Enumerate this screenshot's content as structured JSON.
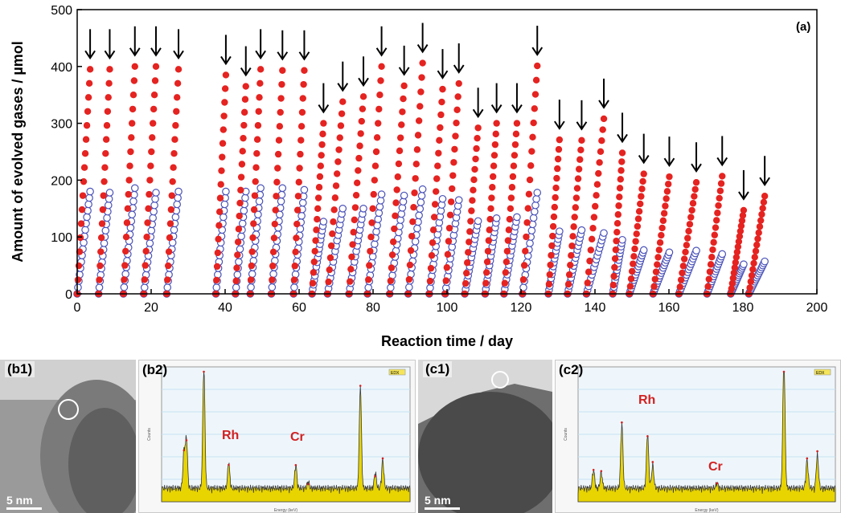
{
  "chart_data": [
    {
      "type": "scatter",
      "panel_label": "(a)",
      "xlabel": "Reaction time / day",
      "ylabel": "Amount of evolved gases / µmol",
      "xlim": [
        0,
        200
      ],
      "ylim": [
        0,
        500
      ],
      "xticks": [
        "0",
        "20",
        "40",
        "60",
        "80",
        "100",
        "120",
        "140",
        "160",
        "180",
        "200"
      ],
      "yticks": [
        "0",
        "100",
        "200",
        "300",
        "400",
        "500"
      ],
      "colors": {
        "H2": "#e52320",
        "O2_fill": "#ffffff",
        "O2_edge": "#4a52b8"
      },
      "markers": {
        "H2": "filled circle (red)",
        "O2": "open circle (blue edge)"
      },
      "arrow_note": "down arrows mark each evacuation/restart of a run",
      "series": [
        {
          "name": "",
          "points": [
            [
              [
                0,
                0
              ],
              [
                3.5,
                395
              ]
            ],
            [
              [
                5.8,
                0
              ],
              [
                8.8,
                395
              ]
            ],
            [
              [
                12.5,
                0
              ],
              [
                15.6,
                400
              ]
            ],
            [
              [
                18,
                0
              ],
              [
                21.3,
                400
              ]
            ],
            [
              [
                24.2,
                0
              ],
              [
                27.4,
                395
              ]
            ],
            [
              [
                37.5,
                0
              ],
              [
                40.2,
                385
              ]
            ],
            [
              [
                42.8,
                0
              ],
              [
                45.6,
                365
              ]
            ],
            [
              [
                46.8,
                0
              ],
              [
                49.6,
                395
              ]
            ],
            [
              [
                52.5,
                0
              ],
              [
                55.5,
                393
              ]
            ],
            [
              [
                58.5,
                0
              ],
              [
                61.4,
                393
              ]
            ],
            [
              [
                63.5,
                0
              ],
              [
                66.6,
                300
              ]
            ],
            [
              [
                67.7,
                0
              ],
              [
                71.8,
                338
              ]
            ],
            [
              [
                73.5,
                0
              ],
              [
                77.4,
                347
              ]
            ],
            [
              [
                78.5,
                0
              ],
              [
                82.3,
                400
              ]
            ],
            [
              [
                84.5,
                0
              ],
              [
                88.4,
                366
              ]
            ],
            [
              [
                89.5,
                0
              ],
              [
                93.4,
                406
              ]
            ],
            [
              [
                95.2,
                0
              ],
              [
                98.8,
                360
              ]
            ],
            [
              [
                99.5,
                0
              ],
              [
                103.2,
                370
              ]
            ],
            [
              [
                104.8,
                0
              ],
              [
                108.4,
                292
              ]
            ],
            [
              [
                110.3,
                0
              ],
              [
                113.4,
                300
              ]
            ],
            [
              [
                115.4,
                0
              ],
              [
                118.9,
                300
              ]
            ],
            [
              [
                120.4,
                0
              ],
              [
                124.4,
                401
              ]
            ],
            [
              [
                127.4,
                0
              ],
              [
                130.4,
                271
              ]
            ],
            [
              [
                132.6,
                0
              ],
              [
                136.4,
                270
              ]
            ],
            [
              [
                137.7,
                0
              ],
              [
                142.4,
                308
              ]
            ],
            [
              [
                144.8,
                0
              ],
              [
                147.4,
                248
              ]
            ],
            [
              [
                149.3,
                0
              ],
              [
                153.2,
                211
              ]
            ],
            [
              [
                155.7,
                0
              ],
              [
                160.1,
                206
              ]
            ],
            [
              [
                162.7,
                0
              ],
              [
                167.4,
                196
              ]
            ],
            [
              [
                170.3,
                0
              ],
              [
                174.4,
                207
              ]
            ],
            [
              [
                176.7,
                0
              ],
              [
                180.2,
                147
              ]
            ],
            [
              [
                181.6,
                0
              ],
              [
                185.9,
                172
              ]
            ]
          ]
        },
        {
          "name": "",
          "points": [
            [
              [
                0,
                0
              ],
              [
                3.5,
                180
              ]
            ],
            [
              [
                5.8,
                0
              ],
              [
                8.8,
                178
              ]
            ],
            [
              [
                12.5,
                0
              ],
              [
                15.6,
                186
              ]
            ],
            [
              [
                18,
                0
              ],
              [
                21.3,
                178
              ]
            ],
            [
              [
                24.2,
                0
              ],
              [
                27.4,
                180
              ]
            ],
            [
              [
                37.5,
                0
              ],
              [
                40.2,
                180
              ]
            ],
            [
              [
                42.8,
                0
              ],
              [
                45.6,
                180
              ]
            ],
            [
              [
                46.8,
                0
              ],
              [
                49.6,
                186
              ]
            ],
            [
              [
                52.5,
                0
              ],
              [
                55.5,
                186
              ]
            ],
            [
              [
                58.5,
                0
              ],
              [
                61.4,
                183
              ]
            ],
            [
              [
                63.5,
                0
              ],
              [
                66.6,
                127
              ]
            ],
            [
              [
                67.7,
                0
              ],
              [
                71.8,
                150
              ]
            ],
            [
              [
                73.5,
                0
              ],
              [
                77.4,
                150
              ]
            ],
            [
              [
                78.5,
                0
              ],
              [
                82.3,
                175
              ]
            ],
            [
              [
                84.5,
                0
              ],
              [
                88.4,
                173
              ]
            ],
            [
              [
                89.5,
                0
              ],
              [
                93.4,
                184
              ]
            ],
            [
              [
                95.2,
                0
              ],
              [
                98.8,
                167
              ]
            ],
            [
              [
                99.5,
                0
              ],
              [
                103.2,
                165
              ]
            ],
            [
              [
                104.8,
                0
              ],
              [
                108.4,
                128
              ]
            ],
            [
              [
                110.3,
                0
              ],
              [
                113.4,
                133
              ]
            ],
            [
              [
                115.4,
                0
              ],
              [
                118.9,
                135
              ]
            ],
            [
              [
                120.4,
                0
              ],
              [
                124.4,
                178
              ]
            ],
            [
              [
                127.4,
                0
              ],
              [
                130.4,
                110
              ]
            ],
            [
              [
                132.6,
                0
              ],
              [
                136.4,
                112
              ]
            ],
            [
              [
                137.7,
                0
              ],
              [
                142.4,
                107
              ]
            ],
            [
              [
                144.8,
                0
              ],
              [
                147.4,
                95
              ]
            ],
            [
              [
                149.3,
                0
              ],
              [
                153.2,
                77
              ]
            ],
            [
              [
                155.7,
                0
              ],
              [
                160.1,
                73
              ]
            ],
            [
              [
                162.7,
                0
              ],
              [
                167.4,
                76
              ]
            ],
            [
              [
                170.3,
                0
              ],
              [
                174.4,
                70
              ]
            ],
            [
              [
                176.7,
                0
              ],
              [
                180.2,
                52
              ]
            ],
            [
              [
                181.6,
                0
              ],
              [
                185.9,
                57
              ]
            ]
          ]
        }
      ],
      "arrows_x": [
        3.5,
        8.8,
        15.6,
        21.3,
        27.4,
        40.2,
        45.6,
        49.6,
        55.5,
        61.4,
        66.6,
        71.8,
        77.4,
        82.3,
        88.4,
        93.4,
        98.8,
        103.2,
        108.4,
        113.4,
        118.9,
        124.4,
        130.4,
        136.4,
        142.4,
        147.4,
        153.2,
        160.1,
        167.4,
        174.4,
        180.2,
        185.9
      ],
      "grid": false,
      "legend": "none"
    },
    {
      "type": "line",
      "panel_label": "(b2)",
      "xlabel": "Energy (keV)",
      "ylabel": "Counts",
      "legend_text": "EDX",
      "peak_labels": [
        "Rh",
        "Cr"
      ],
      "peaks": [
        {
          "x": 0.9,
          "y": 28
        },
        {
          "x": 1.0,
          "y": 38
        },
        {
          "x": 1.7,
          "y": 95
        },
        {
          "x": 2.7,
          "y": 20
        },
        {
          "x": 5.4,
          "y": 18
        },
        {
          "x": 5.9,
          "y": 5
        },
        {
          "x": 8.0,
          "y": 80
        },
        {
          "x": 8.6,
          "y": 12
        },
        {
          "x": 8.9,
          "y": 22
        }
      ],
      "xlim": [
        0,
        10
      ],
      "ylim": [
        0,
        100
      ]
    },
    {
      "type": "line",
      "panel_label": "(c2)",
      "xlabel": "Energy (keV)",
      "ylabel": "Counts",
      "legend_text": "EDX",
      "peak_labels": [
        "Rh",
        "Cr"
      ],
      "peaks": [
        {
          "x": 0.6,
          "y": 14
        },
        {
          "x": 0.9,
          "y": 12
        },
        {
          "x": 1.7,
          "y": 50
        },
        {
          "x": 2.7,
          "y": 42
        },
        {
          "x": 2.9,
          "y": 18
        },
        {
          "x": 5.4,
          "y": 4
        },
        {
          "x": 8.0,
          "y": 100
        },
        {
          "x": 8.9,
          "y": 22
        },
        {
          "x": 9.3,
          "y": 26
        }
      ],
      "xlim": [
        0,
        10
      ],
      "ylim": [
        0,
        100
      ]
    }
  ],
  "tem": {
    "b1": {
      "label": "(b1)",
      "scale": "5 nm"
    },
    "c1": {
      "label": "(c1)",
      "scale": "5 nm"
    }
  }
}
